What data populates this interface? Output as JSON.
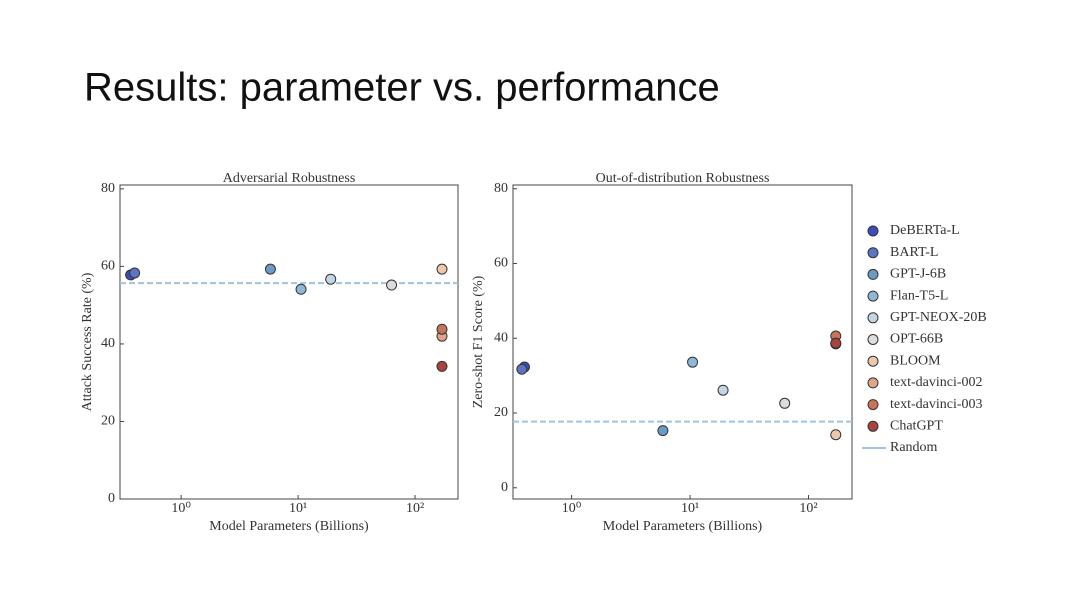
{
  "slide_title": "Results: parameter vs. performance",
  "chart_data": [
    {
      "type": "scatter",
      "title": "Adversarial Robustness",
      "x_label": "Model Parameters (Billions)",
      "y_label": "Attack Success Rate (%)",
      "x_log": true,
      "xlim": [
        0.3,
        233
      ],
      "ylim": [
        0,
        81
      ],
      "xticks": [
        {
          "value": 1,
          "label": "10⁰"
        },
        {
          "value": 10,
          "label": "10¹"
        },
        {
          "value": 100,
          "label": "10²"
        }
      ],
      "yticks": [
        0,
        20,
        40,
        60,
        80
      ],
      "reference_line": {
        "value": 55.7,
        "color": "#9fc3e0"
      },
      "series": [
        {
          "color": "#3b4cc0",
          "x": [
            0.37
          ],
          "values": [
            57.8
          ]
        },
        {
          "color": "#5b74c4",
          "x": [
            0.4
          ],
          "values": [
            58.3
          ]
        },
        {
          "color": "#6b9bc3",
          "x": [
            5.8
          ],
          "values": [
            59.3
          ]
        },
        {
          "color": "#8fb7d8",
          "x": [
            10.6
          ],
          "values": [
            54.1
          ]
        },
        {
          "color": "#c3d6e6",
          "x": [
            19
          ],
          "values": [
            56.7
          ]
        },
        {
          "color": "#dcdcdc",
          "x": [
            63
          ],
          "values": [
            55.2
          ]
        },
        {
          "color": "#ecc9ac",
          "x": [
            170
          ],
          "values": [
            59.3
          ]
        },
        {
          "color": "#e0a487",
          "x": [
            170
          ],
          "values": [
            42
          ]
        },
        {
          "color": "#c8735a",
          "x": [
            170
          ],
          "values": [
            43.8
          ]
        },
        {
          "color": "#a8433d",
          "x": [
            170
          ],
          "values": [
            34.2
          ]
        }
      ]
    },
    {
      "type": "scatter",
      "title": "Out-of-distribution Robustness",
      "x_label": "Model Parameters (Billions)",
      "y_label": "Zero-shot F1 Score (%)",
      "x_log": true,
      "xlim": [
        0.32,
        233
      ],
      "ylim": [
        -3,
        81
      ],
      "xticks": [
        {
          "value": 1,
          "label": "10⁰"
        },
        {
          "value": 10,
          "label": "10¹"
        },
        {
          "value": 100,
          "label": "10²"
        }
      ],
      "yticks": [
        0,
        20,
        40,
        60,
        80
      ],
      "reference_line": {
        "name": "Random",
        "value": 17.7,
        "color": "#9fc3e0"
      },
      "series": [
        {
          "name": "DeBERTa-L",
          "color": "#3b4cc0",
          "x": [
            0.4
          ],
          "values": [
            32.3
          ]
        },
        {
          "name": "BART-L",
          "color": "#5b74c4",
          "x": [
            0.38
          ],
          "values": [
            31.7
          ]
        },
        {
          "name": "GPT-J-6B",
          "color": "#6b9bc3",
          "x": [
            5.9
          ],
          "values": [
            15.3
          ]
        },
        {
          "name": "Flan-T5-L",
          "color": "#8fb7d8",
          "x": [
            10.5
          ],
          "values": [
            33.6
          ]
        },
        {
          "name": "GPT-NEOX-20B",
          "color": "#c3d6e6",
          "x": [
            19
          ],
          "values": [
            26.1
          ]
        },
        {
          "name": "OPT-66B",
          "color": "#dcdcdc",
          "x": [
            63
          ],
          "values": [
            22.6
          ]
        },
        {
          "name": "BLOOM",
          "color": "#ecc9ac",
          "x": [
            170
          ],
          "values": [
            14.2
          ]
        },
        {
          "name": "text-davinci-002",
          "color": "#e0a487",
          "x": [
            170
          ],
          "values": [
            38.5
          ]
        },
        {
          "name": "text-davinci-003",
          "color": "#c8735a",
          "x": [
            170
          ],
          "values": [
            40.6
          ]
        },
        {
          "name": "ChatGPT",
          "color": "#a8433d",
          "x": [
            170
          ],
          "values": [
            38.7
          ]
        }
      ]
    }
  ]
}
